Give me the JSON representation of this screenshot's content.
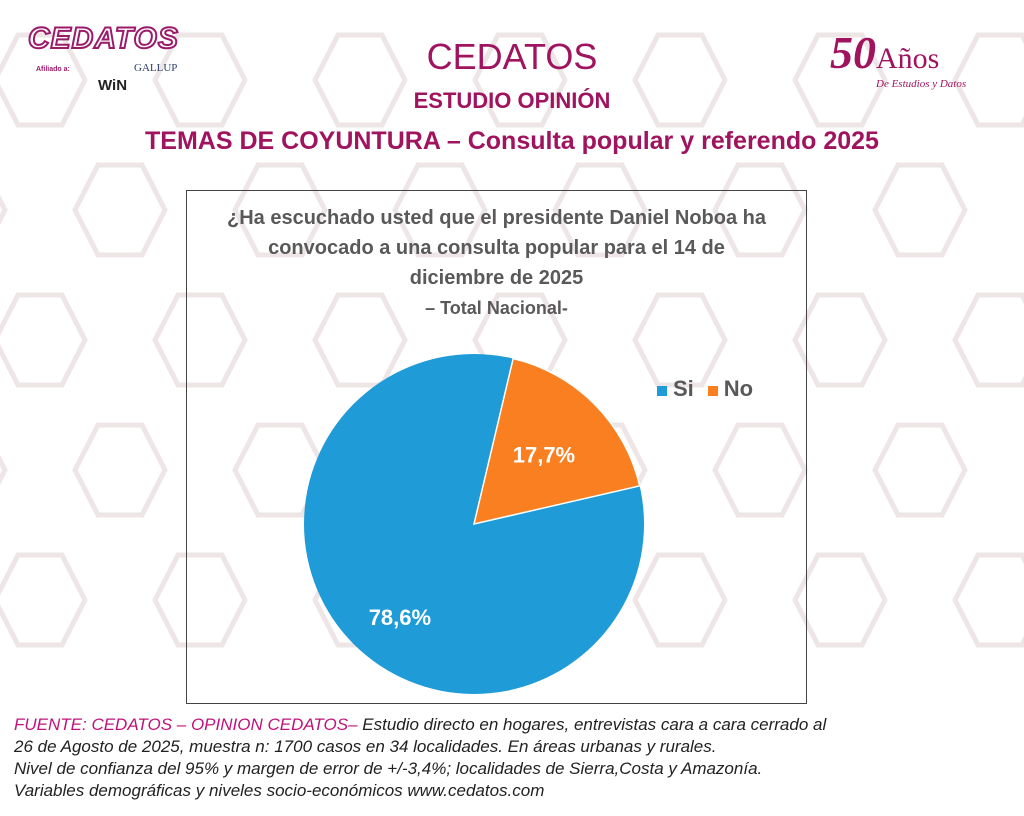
{
  "header": {
    "org": "CEDATOS",
    "study": "ESTUDIO OPINIÓN",
    "topic": "TEMAS DE COYUNTURA – Consulta popular y referendo 2025"
  },
  "logo": {
    "name": "CEDATOS",
    "affiliated": "Afiliado a:",
    "gallup": "GALLUP",
    "win": "WiN"
  },
  "anniversary": {
    "number": "50",
    "word": "Años",
    "tagline": "De Estudios y Datos"
  },
  "chart_data": {
    "type": "pie",
    "title": "¿Ha escuchado usted que el presidente Daniel Noboa ha convocado a una consulta popular para el 14 de diciembre de 2025",
    "subtitle": "– Total Nacional-",
    "categories": [
      "Si",
      "No"
    ],
    "values": [
      78.6,
      17.7
    ],
    "labels": [
      "78,6%",
      "17,7%"
    ],
    "colors": [
      "#1f9bd7",
      "#f97f21"
    ],
    "legend_position": "top-right"
  },
  "footer": {
    "source": "FUENTE: CEDATOS – OPINION CEDATOS–",
    "line1": " Estudio directo en hogares, entrevistas cara a cara cerrado al",
    "line2": "26 de Agosto de 2025, muestra n: 1700 casos en 34 localidades. En áreas urbanas y rurales.",
    "line3": "Nivel de confianza del 95% y margen de error de +/-3,4%; localidades de Sierra,Costa y Amazonía.",
    "line4": "Variables demográficas y niveles socio-económicos  www.cedatos.com"
  }
}
